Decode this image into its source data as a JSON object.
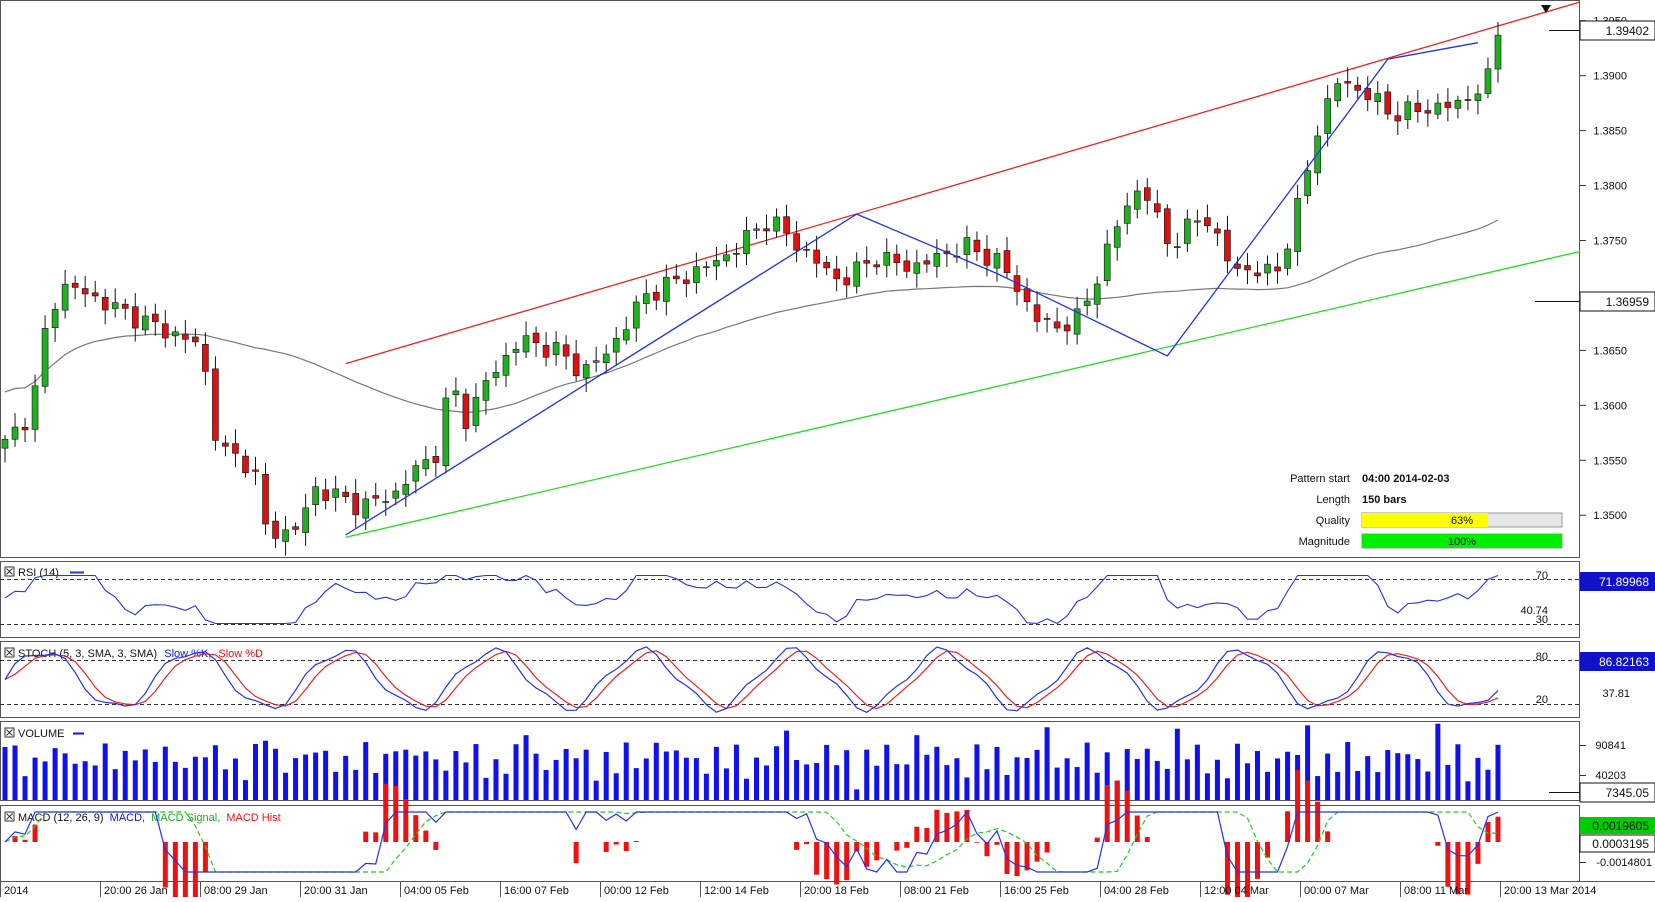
{
  "chart_data": {
    "type": "candlestick",
    "symbol": "",
    "last_price": "1.39402",
    "main_panel": {
      "yticks": [
        "1.3950",
        "1.3900",
        "1.3850",
        "1.3800",
        "1.3750",
        "1.3700",
        "1.3650",
        "1.3600",
        "1.3550",
        "1.3500"
      ],
      "ylim": [
        1.3462,
        1.3967
      ],
      "moving_average_value": "1.36959",
      "pattern_info": {
        "pattern_start_label": "Pattern start",
        "pattern_start_value": "04:00 2014-02-03",
        "length_label": "Length",
        "length_value": "150 bars",
        "quality_label": "Quality",
        "quality_value": "63%",
        "quality_fraction": 0.63,
        "magnitude_label": "Magnitude",
        "magnitude_value": "100%",
        "magnitude_fraction": 1.0
      }
    },
    "x_axis_labels": [
      "2014",
      "20:00 26 Jan",
      "08:00 29 Jan",
      "20:00 31 Jan",
      "04:00 05 Feb",
      "16:00 07 Feb",
      "00:00 12 Feb",
      "12:00 14 Feb",
      "20:00 18 Feb",
      "08:00 21 Feb",
      "16:00 25 Feb",
      "04:00 28 Feb",
      "12:00 04 Mar",
      "00:00 07 Mar",
      "08:00 11 Mar",
      "20:00 13 Mar 2014"
    ],
    "indicators": {
      "rsi": {
        "title": "RSI (14)",
        "value": "71.89968",
        "level_high": "70",
        "level_low": "30",
        "mid_value": "40.74"
      },
      "stoch": {
        "title_prefix": "STOCH (5, 3, SMA, 3, SMA)",
        "k_label": "Slow %K,",
        "d_label": "Slow %D",
        "value": "86.82163",
        "level_high": "80",
        "level_low": "20",
        "mid_value": "37.81"
      },
      "volume": {
        "title": "VOLUME",
        "ticks": [
          "90841",
          "40203"
        ],
        "value": "7345.05"
      },
      "macd": {
        "title_prefix": "MACD (12, 26, 9)",
        "macd_label": "MACD,",
        "signal_label": "MACD Signal,",
        "hist_label": "MACD Hist",
        "value_macd": "0.0019605",
        "value_hist": "0.0003195",
        "tick_low": "-0.0014801"
      }
    },
    "colors": {
      "bull": "#22b022",
      "bear": "#dd1111",
      "resistance": "#ee2222",
      "support": "#22dd22",
      "zigzag": "#2233ee",
      "ma": "#777777",
      "rsi_line": "#2233ee",
      "stoch_k": "#2233ee",
      "stoch_d": "#ee2222",
      "volume": "#1111ee",
      "macd_line": "#2233ee",
      "macd_signal": "#22cc22",
      "macd_hist": "#ee1111",
      "label_box": "#111111",
      "quality_fill": "#ffff00",
      "magnitude_fill": "#00ee00"
    }
  }
}
